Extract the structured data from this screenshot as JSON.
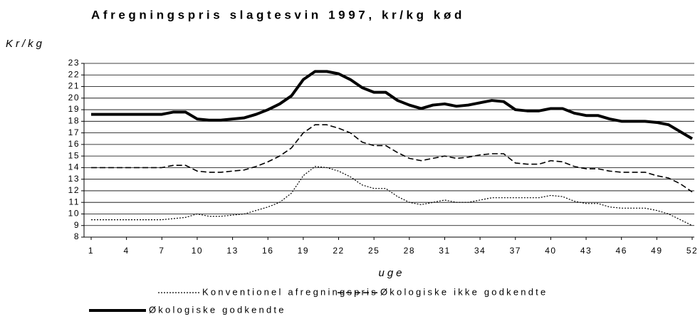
{
  "chart_data": {
    "type": "line",
    "title": "Afregningspris slagtesvin 1997, kr/kg kød",
    "y_label": "Kr/kg",
    "x_label": "uge",
    "x": [
      1,
      2,
      3,
      4,
      5,
      6,
      7,
      8,
      9,
      10,
      11,
      12,
      13,
      14,
      15,
      16,
      17,
      18,
      19,
      20,
      21,
      22,
      23,
      24,
      25,
      26,
      27,
      28,
      29,
      30,
      31,
      32,
      33,
      34,
      35,
      36,
      37,
      38,
      39,
      40,
      41,
      42,
      43,
      44,
      45,
      46,
      47,
      48,
      49,
      50,
      51,
      52
    ],
    "xlim": [
      1,
      52
    ],
    "xticks": [
      1,
      4,
      7,
      10,
      13,
      16,
      19,
      22,
      25,
      28,
      31,
      34,
      37,
      40,
      43,
      46,
      49,
      52
    ],
    "ylim": [
      8,
      23
    ],
    "yticks": [
      8,
      9,
      10,
      11,
      12,
      13,
      14,
      15,
      16,
      17,
      18,
      19,
      20,
      21,
      22,
      23
    ],
    "grid": true,
    "series": [
      {
        "name": "Konventionel afregningspris",
        "color": "#000000",
        "style": "dotted",
        "width": 1.2,
        "values": [
          9.5,
          9.5,
          9.5,
          9.5,
          9.5,
          9.5,
          9.5,
          9.6,
          9.7,
          10.0,
          9.8,
          9.8,
          9.9,
          10.0,
          10.3,
          10.6,
          11.0,
          11.8,
          13.3,
          14.1,
          14.0,
          13.7,
          13.2,
          12.5,
          12.2,
          12.2,
          11.5,
          11.0,
          10.8,
          11.0,
          11.2,
          11.0,
          11.0,
          11.2,
          11.4,
          11.4,
          11.4,
          11.4,
          11.4,
          11.6,
          11.5,
          11.1,
          10.9,
          10.9,
          10.6,
          10.5,
          10.5,
          10.5,
          10.3,
          10.0,
          9.5,
          9.0
        ]
      },
      {
        "name": "Økologiske ikke godkendte",
        "color": "#000000",
        "style": "dashed",
        "width": 1.6,
        "values": [
          14.0,
          14.0,
          14.0,
          14.0,
          14.0,
          14.0,
          14.0,
          14.2,
          14.2,
          13.7,
          13.6,
          13.6,
          13.7,
          13.8,
          14.1,
          14.5,
          15.0,
          15.7,
          17.0,
          17.7,
          17.7,
          17.4,
          17.0,
          16.2,
          15.9,
          15.9,
          15.3,
          14.8,
          14.6,
          14.8,
          15.0,
          14.8,
          14.9,
          15.1,
          15.2,
          15.2,
          14.4,
          14.3,
          14.3,
          14.6,
          14.5,
          14.1,
          13.9,
          13.9,
          13.7,
          13.6,
          13.6,
          13.6,
          13.3,
          13.1,
          12.6,
          11.9
        ]
      },
      {
        "name": "Økologiske godkendte",
        "color": "#000000",
        "style": "solid",
        "width": 4,
        "values": [
          18.6,
          18.6,
          18.6,
          18.6,
          18.6,
          18.6,
          18.6,
          18.8,
          18.8,
          18.2,
          18.1,
          18.1,
          18.2,
          18.3,
          18.6,
          19.0,
          19.5,
          20.2,
          21.6,
          22.3,
          22.3,
          22.1,
          21.6,
          20.9,
          20.5,
          20.5,
          19.8,
          19.4,
          19.1,
          19.4,
          19.5,
          19.3,
          19.4,
          19.6,
          19.8,
          19.7,
          19.0,
          18.9,
          18.9,
          19.1,
          19.1,
          18.7,
          18.5,
          18.5,
          18.2,
          18.0,
          18.0,
          18.0,
          17.9,
          17.7,
          17.1,
          16.5
        ]
      }
    ]
  }
}
